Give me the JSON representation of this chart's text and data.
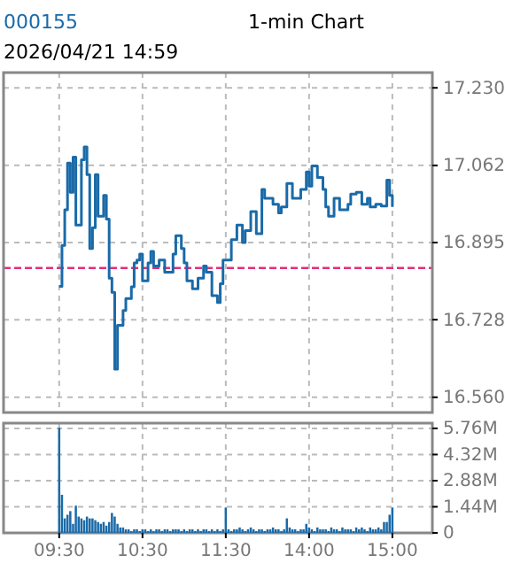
{
  "chart_data": [
    {
      "type": "line",
      "title": "000155",
      "subtitle": "1-min Chart",
      "annotations": [
        "2026/04/21 14:59"
      ],
      "tick_labels": "y",
      "grid": true,
      "categories": [
        null,
        null,
        null,
        null,
        null,
        null,
        null,
        null,
        null,
        null,
        null,
        null,
        null,
        null,
        null,
        null,
        null,
        null,
        null,
        null,
        null,
        null,
        null,
        null,
        null,
        null,
        null,
        null,
        null,
        null,
        null,
        null,
        null,
        null,
        null,
        null,
        null,
        null,
        null,
        null,
        null,
        null,
        null,
        null,
        null,
        null,
        null,
        null,
        null,
        null,
        null,
        null,
        null,
        null,
        null,
        null,
        null,
        null,
        null,
        null,
        null,
        null,
        null,
        null,
        null,
        null,
        null,
        null,
        null,
        null,
        null,
        null,
        null,
        null,
        null,
        null,
        null,
        null,
        null,
        null,
        null,
        null,
        null,
        null,
        null,
        null,
        null,
        null,
        null,
        null,
        null,
        null,
        null,
        null,
        null,
        null,
        null,
        null,
        null,
        null,
        null,
        null,
        null,
        null,
        null,
        null,
        null,
        null,
        null,
        null,
        null,
        null,
        null,
        null,
        null,
        null,
        null,
        null,
        null,
        null,
        null
      ],
      "ylim": [
        16.527,
        17.263
      ],
      "yticks": [
        {
          "value": 17.23,
          "label": "17.230"
        },
        17.062,
        16.895,
        16.728,
        {
          "value": 16.56,
          "label": "16.560"
        }
      ],
      "ref_lines": [
        {
          "axis": "y",
          "value": 16.84,
          "color": "#e0307a",
          "line_style": "dashed"
        }
      ],
      "series": [
        {
          "color": "#1a6aa8",
          "values": [
            16.8,
            16.889,
            16.966,
            17.067,
            17.004,
            17.08,
            16.933,
            16.933,
            17.074,
            17.102,
            17.042,
            16.882,
            16.927,
            17.042,
            16.952,
            16.952,
            16.997,
            16.946,
            16.818,
            16.787,
            16.621,
            16.716,
            16.716,
            16.748,
            16.774,
            16.774,
            16.799,
            16.851,
            16.857,
            16.87,
            16.812,
            16.812,
            16.851,
            16.876,
            16.844,
            16.844,
            16.857,
            16.857,
            16.831,
            16.831,
            16.831,
            16.87,
            16.91,
            16.91,
            16.882,
            16.851,
            16.812,
            16.812,
            16.795,
            16.795,
            16.818,
            16.818,
            16.844,
            16.831,
            16.831,
            16.78,
            16.78,
            16.765,
            16.806,
            16.857,
            16.857,
            16.857,
            16.901,
            16.901,
            16.933,
            16.933,
            16.895,
            16.921,
            16.921,
            16.962,
            16.962,
            16.914,
            16.914,
            17.01,
            16.991,
            16.991,
            16.991,
            16.978,
            16.978,
            16.959,
            16.972,
            16.972,
            17.023,
            17.023,
            16.991,
            16.991,
            16.991,
            17.01,
            17.01,
            17.048,
            17.017,
            17.061,
            17.061,
            17.036,
            17.036,
            17.01,
            16.972,
            16.952,
            16.952,
            16.991,
            16.991,
            16.966,
            16.966,
            16.966,
            16.978,
            17.0,
            17.0,
            17.004,
            17.004,
            16.978,
            16.978,
            16.991,
            16.972,
            16.972,
            16.978,
            16.978,
            16.974,
            16.974,
            17.03,
            16.997,
            16.972
          ]
        }
      ]
    },
    {
      "type": "bar",
      "grid": true,
      "categories": [
        "09:30",
        null,
        null,
        null,
        null,
        null,
        null,
        null,
        null,
        null,
        null,
        null,
        null,
        null,
        null,
        null,
        null,
        null,
        null,
        null,
        null,
        null,
        null,
        null,
        null,
        null,
        null,
        null,
        null,
        null,
        "10:30",
        null,
        null,
        null,
        null,
        null,
        null,
        null,
        null,
        null,
        null,
        null,
        null,
        null,
        null,
        null,
        null,
        null,
        null,
        null,
        null,
        null,
        null,
        null,
        null,
        null,
        null,
        null,
        null,
        null,
        "11:30",
        null,
        null,
        null,
        null,
        null,
        null,
        null,
        null,
        null,
        null,
        null,
        null,
        null,
        null,
        null,
        null,
        null,
        null,
        null,
        null,
        null,
        null,
        null,
        null,
        null,
        null,
        null,
        null,
        null,
        "14:00",
        null,
        null,
        null,
        null,
        null,
        null,
        null,
        null,
        null,
        null,
        null,
        null,
        null,
        null,
        null,
        null,
        null,
        null,
        null,
        null,
        null,
        null,
        null,
        null,
        null,
        null,
        null,
        null,
        null,
        "15:00"
      ],
      "ylim": [
        0,
        6.05
      ],
      "yticks": [
        {
          "value": 5.76,
          "label": "5.76M"
        },
        {
          "value": 4.32,
          "label": "4.32M"
        },
        {
          "value": 2.88,
          "label": "2.88M"
        },
        {
          "value": 1.44,
          "label": "1.44M"
        },
        0
      ],
      "series": [
        {
          "color": "#1a6aa8",
          "values": [
            5.8,
            2.1,
            0.8,
            1.0,
            1.2,
            0.5,
            1.5,
            0.9,
            0.8,
            0.7,
            0.9,
            0.8,
            0.8,
            0.7,
            0.6,
            0.5,
            0.6,
            0.4,
            0.6,
            1.1,
            0.9,
            0.5,
            0.3,
            0.3,
            0.2,
            0.2,
            0.1,
            0.2,
            0.2,
            0.1,
            0.2,
            0.2,
            0.1,
            0.2,
            0.1,
            0.2,
            0.2,
            0.1,
            0.2,
            0.2,
            0.1,
            0.2,
            0.2,
            0.2,
            0.1,
            0.2,
            0.1,
            0.2,
            0.2,
            0.1,
            0.2,
            0.1,
            0.2,
            0.2,
            0.1,
            0.2,
            0.1,
            0.2,
            0.1,
            0.2,
            1.4,
            0.2,
            0.1,
            0.2,
            0.2,
            0.3,
            0.2,
            0.1,
            0.2,
            0.3,
            0.2,
            0.1,
            0.2,
            0.2,
            0.1,
            0.2,
            0.2,
            0.3,
            0.2,
            0.2,
            0.1,
            0.2,
            0.8,
            0.3,
            0.2,
            0.2,
            0.1,
            0.2,
            0.2,
            0.5,
            0.3,
            0.2,
            0.1,
            0.3,
            0.2,
            0.2,
            0.2,
            0.1,
            0.3,
            0.2,
            0.2,
            0.1,
            0.3,
            0.2,
            0.2,
            0.2,
            0.1,
            0.3,
            0.2,
            0.3,
            0.2,
            0.1,
            0.3,
            0.2,
            0.2,
            0.3,
            0.2,
            0.6,
            0.6,
            1.0,
            1.4
          ]
        }
      ]
    }
  ]
}
